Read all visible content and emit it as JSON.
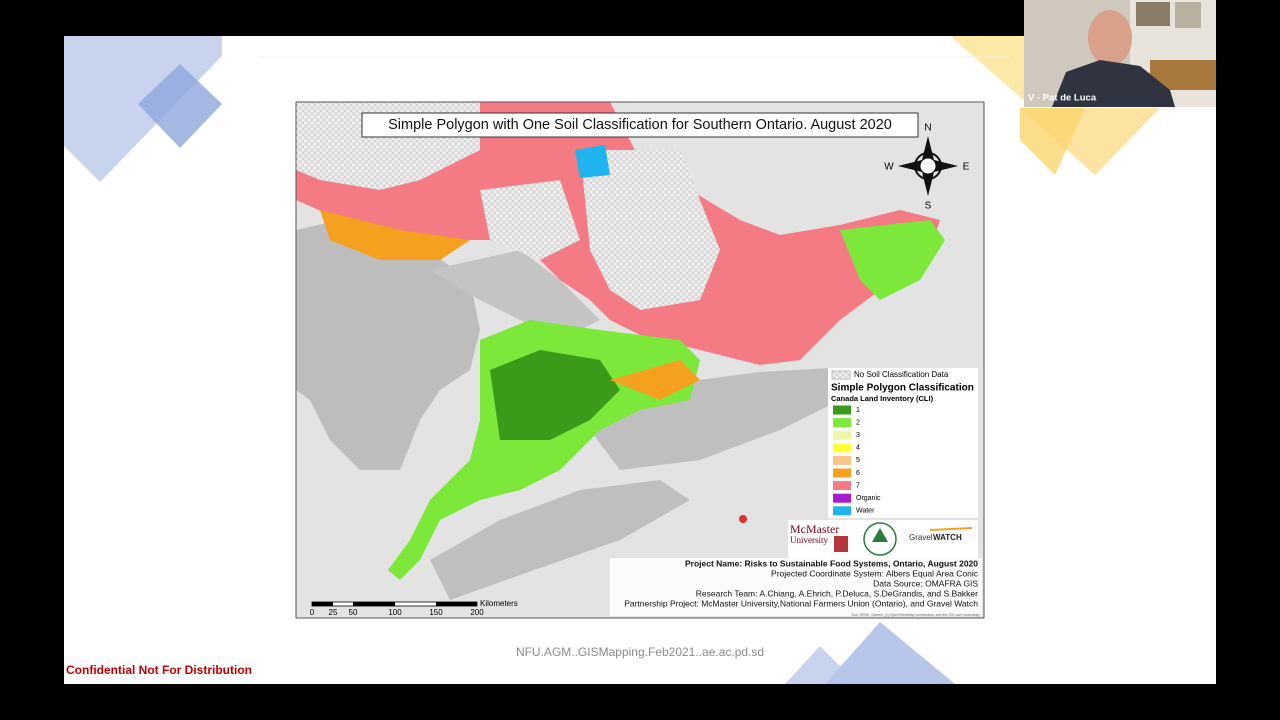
{
  "call": {
    "participant": "V - Pat de Luca"
  },
  "slide": {
    "map": {
      "title": "Simple Polygon with One Soil Classification for Southern Ontario. August 2020",
      "compass": {
        "n": "N",
        "s": "S",
        "e": "E",
        "w": "W"
      },
      "legend": {
        "no_data": "No Soil Classification Data",
        "title": "Simple Polygon Classification",
        "subtitle": "Canada Land Inventory (CLI)",
        "items": [
          {
            "label": "1",
            "color": "#3a9a1a"
          },
          {
            "label": "2",
            "color": "#7be83a"
          },
          {
            "label": "3",
            "color": "#eef7a8"
          },
          {
            "label": "4",
            "color": "#ffff33"
          },
          {
            "label": "5",
            "color": "#f7c58a"
          },
          {
            "label": "6",
            "color": "#f5a01e"
          },
          {
            "label": "7",
            "color": "#f47a84"
          },
          {
            "label": "Organic",
            "color": "#a51ccf"
          },
          {
            "label": "Water",
            "color": "#1fb4ef"
          }
        ]
      },
      "logos": {
        "mcmaster": "McMaster",
        "university": "University",
        "gravel": "Gravel",
        "watch": "WATCH"
      },
      "credits": [
        "Project Name: Risks to Sustainable Food Systems, Ontario, August 2020",
        "Projected Coordinate System: Albers Equal Area Conic",
        "Data Source: OMAFRA GIS",
        "Research Team: A.Chiang, A.Ehrich, P.Deluca, S.DeGrandis, and S.Bakker",
        "Partnership Project: McMaster University,National Farmers Union (Ontario), and Gravel Watch"
      ],
      "scale": {
        "labels": [
          "0",
          "25",
          "50",
          "100",
          "150",
          "200"
        ],
        "unit": "Kilometers"
      },
      "attribution": "Esri, HERE, Garmin, (c) OpenStreetMap contributors, and the GIS user community"
    },
    "file_name": "NFU.AGM..GISMapping.Feb2021..ae.ac.pd.sd",
    "confidential": "Confidential Not For Distribution"
  }
}
